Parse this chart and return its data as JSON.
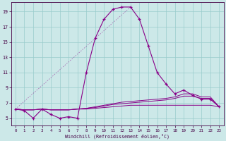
{
  "bg_color": "#cce8e8",
  "grid_color": "#99cccc",
  "line_color": "#880088",
  "xlabel": "Windchill (Refroidissement éolien,°C)",
  "xlim": [
    -0.5,
    23.5
  ],
  "ylim": [
    4.0,
    20.2
  ],
  "yticks": [
    5,
    7,
    9,
    11,
    13,
    15,
    17,
    19
  ],
  "xticks": [
    0,
    1,
    2,
    3,
    4,
    5,
    6,
    7,
    8,
    9,
    10,
    11,
    12,
    13,
    14,
    15,
    16,
    17,
    18,
    19,
    20,
    21,
    22,
    23
  ],
  "line1_x": [
    0,
    1,
    2,
    3,
    4,
    5,
    6,
    7,
    8,
    9,
    10,
    11,
    12,
    13,
    14,
    15,
    16,
    17,
    18,
    19,
    20,
    21,
    22,
    23
  ],
  "line1_y": [
    6.2,
    6.0,
    5.0,
    6.2,
    5.5,
    5.0,
    5.2,
    5.0,
    11.0,
    15.5,
    18.0,
    19.3,
    19.6,
    19.6,
    18.0,
    14.5,
    11.0,
    9.5,
    8.2,
    8.7,
    8.0,
    7.5,
    7.5,
    6.5
  ],
  "line2_x": [
    0,
    1,
    2,
    3,
    4,
    5,
    6,
    7,
    8,
    9,
    10,
    11,
    12,
    13,
    14,
    15,
    16,
    17,
    18,
    19,
    20,
    21,
    22,
    23
  ],
  "line2_y": [
    6.2,
    6.1,
    6.1,
    6.2,
    6.1,
    6.1,
    6.1,
    6.2,
    6.3,
    6.5,
    6.7,
    6.9,
    7.1,
    7.2,
    7.3,
    7.4,
    7.5,
    7.6,
    7.8,
    8.2,
    8.2,
    7.8,
    7.8,
    6.5
  ],
  "line3_x": [
    0,
    1,
    2,
    3,
    4,
    5,
    6,
    7,
    8,
    9,
    10,
    11,
    12,
    13,
    14,
    15,
    16,
    17,
    18,
    19,
    20,
    21,
    22,
    23
  ],
  "line3_y": [
    6.2,
    6.1,
    6.1,
    6.2,
    6.1,
    6.1,
    6.1,
    6.2,
    6.3,
    6.4,
    6.6,
    6.8,
    6.9,
    7.0,
    7.1,
    7.2,
    7.3,
    7.4,
    7.6,
    7.9,
    7.9,
    7.6,
    7.6,
    6.5
  ],
  "line4_x": [
    0,
    1,
    2,
    3,
    4,
    5,
    6,
    7,
    8,
    9,
    10,
    11,
    12,
    13,
    14,
    15,
    16,
    17,
    18,
    19,
    20,
    21,
    22,
    23
  ],
  "line4_y": [
    6.2,
    6.1,
    6.1,
    6.2,
    6.1,
    6.1,
    6.1,
    6.2,
    6.2,
    6.3,
    6.4,
    6.5,
    6.6,
    6.7,
    6.7,
    6.7,
    6.7,
    6.7,
    6.7,
    6.7,
    6.7,
    6.7,
    6.7,
    6.5
  ]
}
